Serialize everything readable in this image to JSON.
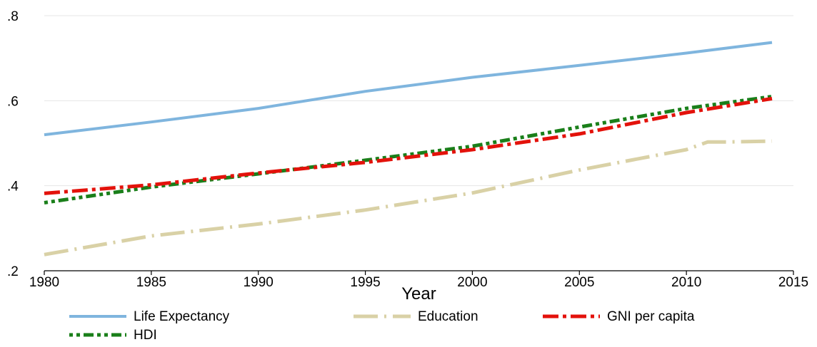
{
  "chart_data": {
    "type": "line",
    "title": "",
    "xlabel": "Year",
    "ylabel": "",
    "xlim": [
      1980,
      2015
    ],
    "ylim": [
      0.2,
      0.8
    ],
    "xticks": [
      1980,
      1985,
      1990,
      1995,
      2000,
      2005,
      2010,
      2015
    ],
    "xtick_labels": [
      "1980",
      "1985",
      "1990",
      "1995",
      "2000",
      "2005",
      "2010",
      "2015"
    ],
    "yticks": [
      0.2,
      0.4,
      0.6,
      0.8
    ],
    "ytick_labels": [
      ".2",
      ".4",
      ".6",
      ".8"
    ],
    "grid": "horizontal",
    "legend_position": "bottom",
    "series": [
      {
        "name": "Life Expectancy",
        "color": "#7fb5de",
        "style": "solid",
        "points": [
          [
            1980,
            0.52
          ],
          [
            1985,
            0.55
          ],
          [
            1990,
            0.582
          ],
          [
            1995,
            0.622
          ],
          [
            2000,
            0.655
          ],
          [
            2005,
            0.683
          ],
          [
            2010,
            0.712
          ],
          [
            2014,
            0.737
          ]
        ]
      },
      {
        "name": "Education",
        "color": "#d9d1a6",
        "style": "longdash-dot",
        "points": [
          [
            1980,
            0.238
          ],
          [
            1985,
            0.282
          ],
          [
            1990,
            0.31
          ],
          [
            1995,
            0.343
          ],
          [
            2000,
            0.383
          ],
          [
            2005,
            0.437
          ],
          [
            2010,
            0.485
          ],
          [
            2011,
            0.503
          ],
          [
            2012,
            0.503
          ],
          [
            2014,
            0.505
          ]
        ]
      },
      {
        "name": "GNI per capita",
        "color": "#e3120b",
        "style": "dash-dot",
        "points": [
          [
            1980,
            0.382
          ],
          [
            1985,
            0.402
          ],
          [
            1990,
            0.43
          ],
          [
            1995,
            0.455
          ],
          [
            2000,
            0.485
          ],
          [
            2005,
            0.522
          ],
          [
            2010,
            0.572
          ],
          [
            2014,
            0.605
          ]
        ]
      },
      {
        "name": "HDI",
        "color": "#1a7f1a",
        "style": "dot-dash",
        "points": [
          [
            1980,
            0.36
          ],
          [
            1985,
            0.397
          ],
          [
            1990,
            0.428
          ],
          [
            1995,
            0.46
          ],
          [
            2000,
            0.493
          ],
          [
            2005,
            0.538
          ],
          [
            2010,
            0.582
          ],
          [
            2014,
            0.61
          ]
        ]
      }
    ]
  }
}
